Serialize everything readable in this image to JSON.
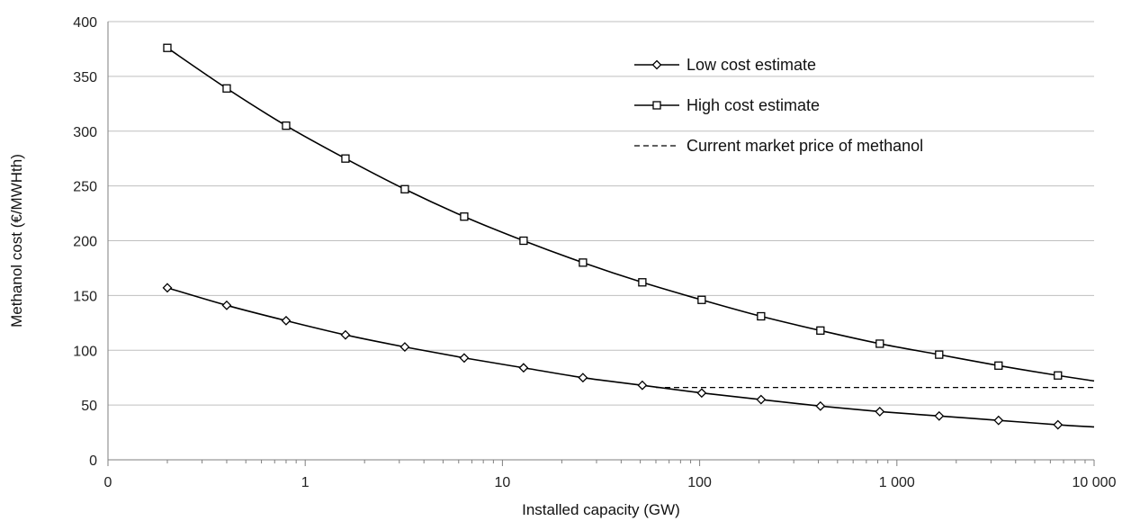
{
  "chart_data": {
    "type": "line",
    "title": "",
    "xlabel": "Installed capacity (GW)",
    "ylabel": "Methanol cost (€/MWHth)",
    "x_scale": "log",
    "xlim": [
      0.1,
      10000
    ],
    "ylim": [
      0,
      400
    ],
    "grid": "horizontal",
    "legend_position": "top-right",
    "x_tick_labels": [
      "0",
      "1",
      "10",
      "100",
      "1 000",
      "10 000"
    ],
    "y_tick_labels": [
      "0",
      "50",
      "100",
      "150",
      "200",
      "250",
      "300",
      "350",
      "400"
    ],
    "series": [
      {
        "name": "Low cost estimate",
        "marker": "diamond",
        "line": "solid",
        "color": "#000000",
        "x": [
          0.2,
          0.4,
          0.8,
          1.6,
          3.2,
          6.4,
          12.8,
          25.6,
          51.2,
          102.4,
          204.8,
          409.6,
          819.2,
          1638.4,
          3276.8,
          6553.6
        ],
        "y": [
          157,
          141,
          127,
          114,
          103,
          93,
          84,
          75,
          68,
          61,
          55,
          49,
          44,
          40,
          36,
          32
        ]
      },
      {
        "name": "High cost estimate",
        "marker": "square",
        "line": "solid",
        "color": "#000000",
        "x": [
          0.2,
          0.4,
          0.8,
          1.6,
          3.2,
          6.4,
          12.8,
          25.6,
          51.2,
          102.4,
          204.8,
          409.6,
          819.2,
          1638.4,
          3276.8,
          6553.6
        ],
        "y": [
          376,
          339,
          305,
          275,
          247,
          222,
          200,
          180,
          162,
          146,
          131,
          118,
          106,
          96,
          86,
          77
        ]
      },
      {
        "name": "Current market price of methanol",
        "marker": "none",
        "line": "dashed",
        "color": "#000000",
        "x": [
          60,
          10000
        ],
        "y": [
          66,
          66
        ]
      }
    ],
    "curve_tails": {
      "Low cost estimate": 30,
      "High cost estimate": 72
    }
  }
}
